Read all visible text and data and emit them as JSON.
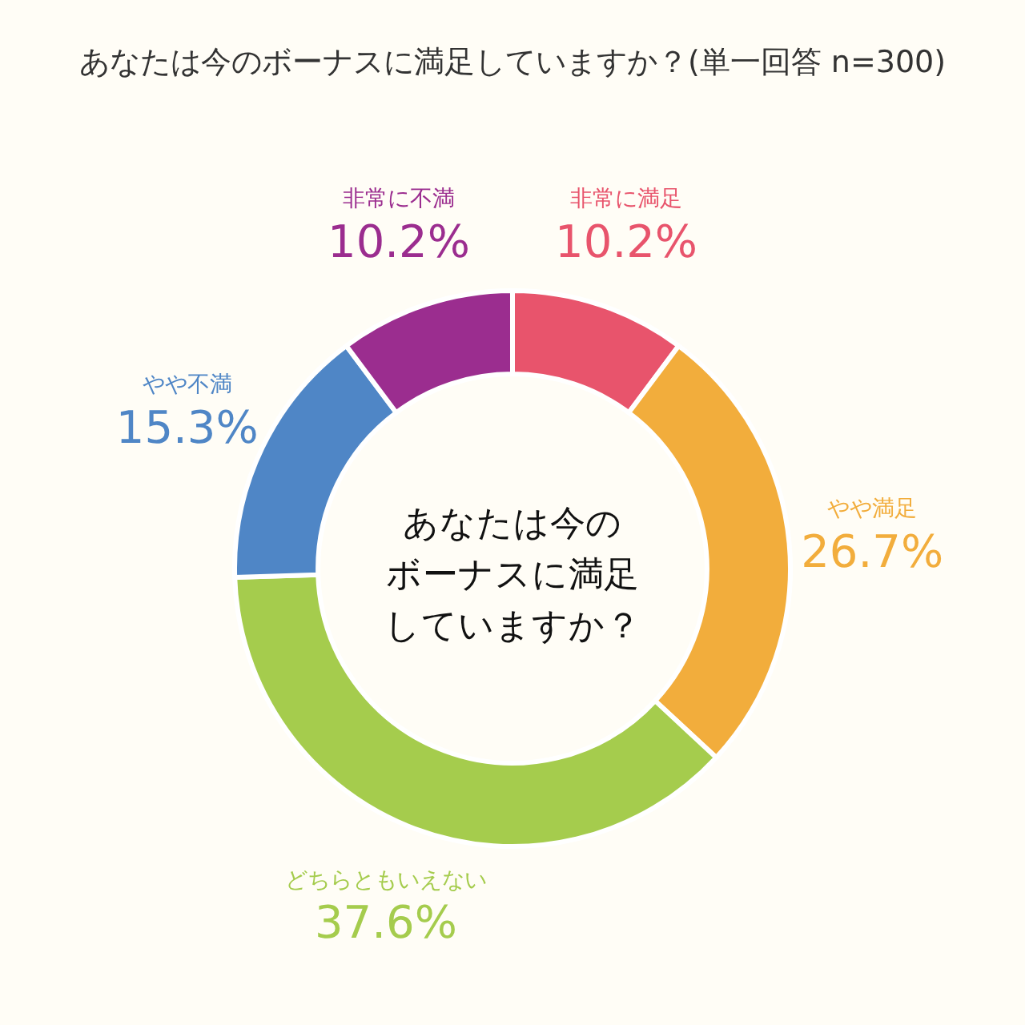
{
  "chart_data": {
    "type": "donut",
    "title": "あなたは今のボーナスに満足していますか？(単一回答 n=300)",
    "categories": [
      "非常に満足",
      "やや満足",
      "どちらともいえない",
      "やや不満",
      "非常に不満"
    ],
    "values": [
      10.2,
      26.7,
      37.6,
      15.3,
      10.2
    ],
    "value_labels": [
      "10.2%",
      "26.7%",
      "37.6%",
      "15.3%",
      "10.2%"
    ],
    "colors": [
      "#e8546c",
      "#f2ad3c",
      "#a5cc4d",
      "#4f86c6",
      "#9b2d8f"
    ],
    "legend": false,
    "annotations": [
      "あなたは今の",
      "ボーナスに満足",
      "していますか？"
    ]
  }
}
